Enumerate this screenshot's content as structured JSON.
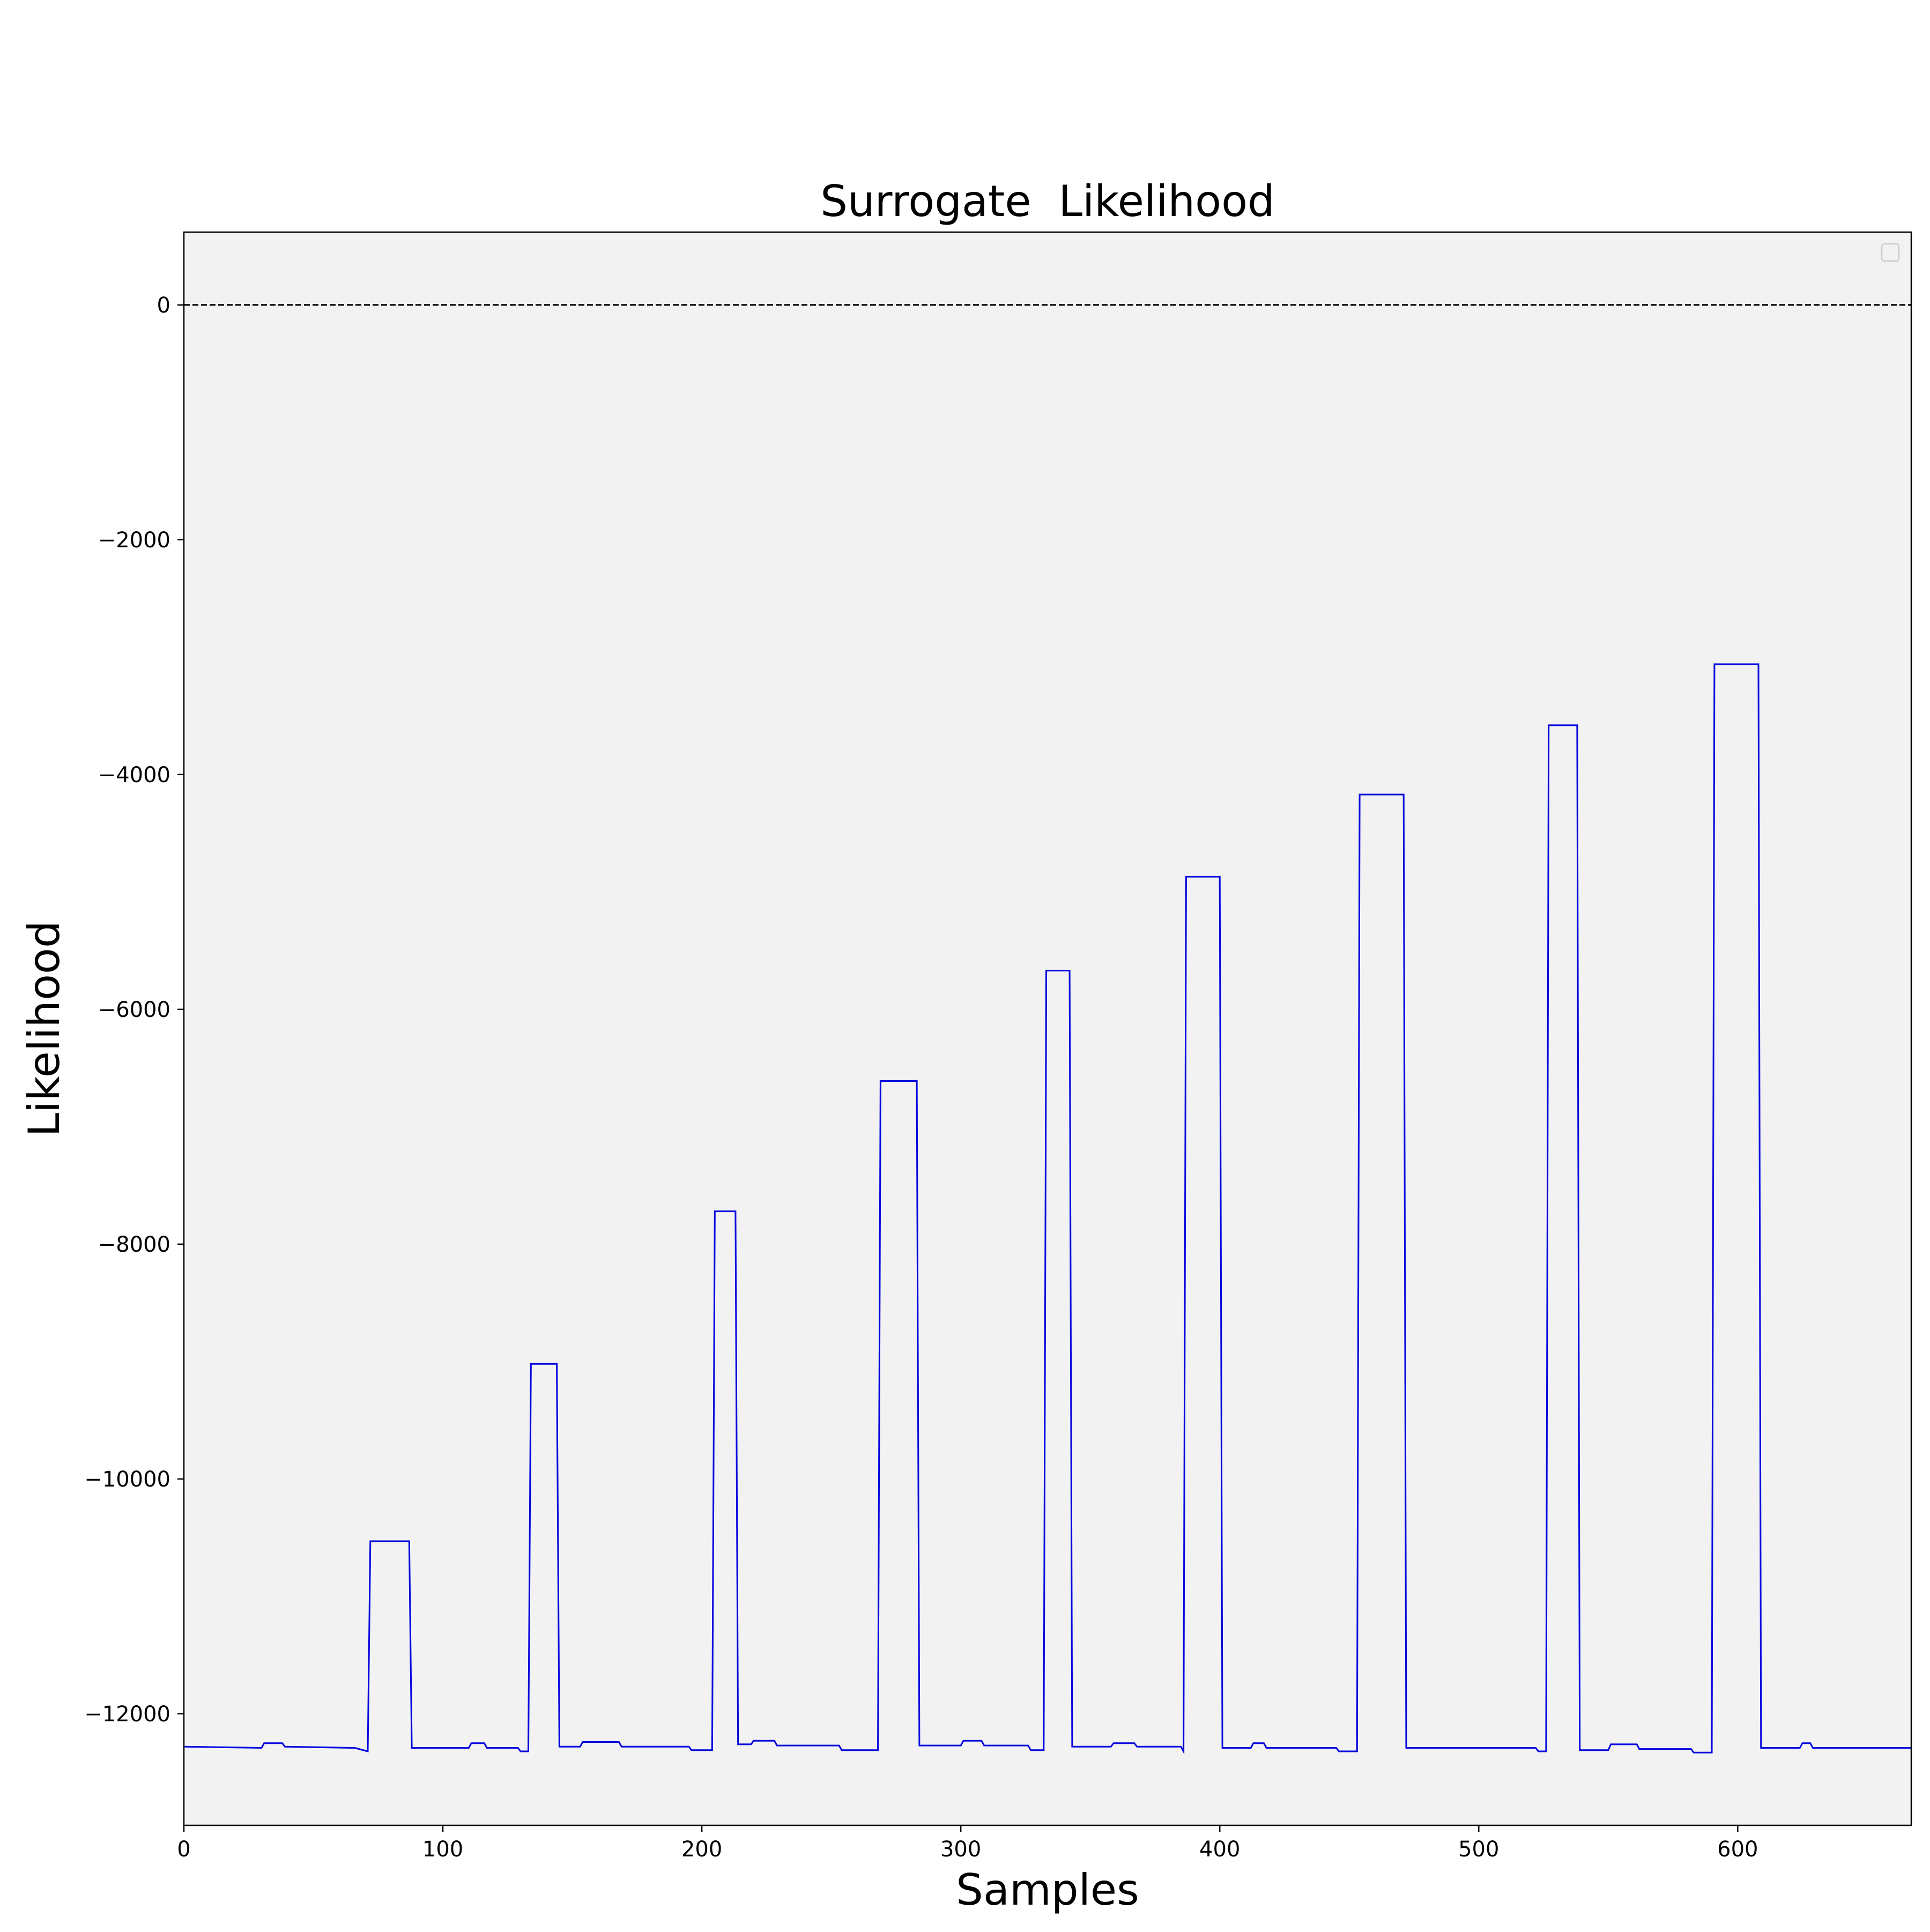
{
  "chart_data": {
    "type": "line",
    "title": "Surrogate  Likelihood",
    "xlabel": "Samples",
    "ylabel": "Likelihood",
    "xlim": [
      0,
      667
    ],
    "ylim": [
      -12950,
      620
    ],
    "xticks": [
      0,
      100,
      200,
      300,
      400,
      500,
      600
    ],
    "xtick_labels": [
      "0",
      "100",
      "200",
      "300",
      "400",
      "500",
      "600"
    ],
    "yticks": [
      0,
      -2000,
      -4000,
      -6000,
      -8000,
      -10000,
      -12000
    ],
    "ytick_labels": [
      "0",
      "−2000",
      "−4000",
      "−6000",
      "−8000",
      "−10000",
      "−12000"
    ],
    "grid": false,
    "legend": {
      "placement": "top-right",
      "entries": []
    },
    "background": "#f2f2f2",
    "line_color": "#0000dd",
    "reference_line": {
      "y": 0,
      "style": "dashed",
      "color": "#000000"
    },
    "series": [
      {
        "x": [
          0,
          30,
          31,
          38,
          39,
          65,
          66,
          71,
          72,
          87,
          88,
          110,
          111,
          116,
          117,
          129,
          130,
          133,
          134,
          144,
          145,
          153,
          154,
          168,
          169,
          195,
          196,
          204,
          205,
          213,
          214,
          219,
          220,
          228,
          229,
          253,
          254,
          268,
          269,
          283,
          284,
          300,
          301,
          308,
          309,
          326,
          327,
          332,
          333,
          342,
          343,
          358,
          359,
          367,
          368,
          385,
          386,
          387,
          400,
          401,
          412,
          413,
          417,
          418,
          445,
          446,
          453,
          454,
          471,
          472,
          522,
          523,
          526,
          527,
          538,
          539,
          550,
          551,
          561,
          562,
          582,
          583,
          590,
          591,
          608,
          609,
          624,
          625,
          628,
          629,
          667
        ],
        "y": [
          -12280,
          -12290,
          -12250,
          -12250,
          -12280,
          -12290,
          -12290,
          -12320,
          -10530,
          -10530,
          -12290,
          -12290,
          -12250,
          -12250,
          -12290,
          -12290,
          -12320,
          -12320,
          -9020,
          -9020,
          -12280,
          -12280,
          -12240,
          -12240,
          -12280,
          -12280,
          -12310,
          -12310,
          -7720,
          -7720,
          -12260,
          -12260,
          -12230,
          -12230,
          -12270,
          -12270,
          -12310,
          -12310,
          -6610,
          -6610,
          -12270,
          -12270,
          -12230,
          -12230,
          -12270,
          -12270,
          -12310,
          -12310,
          -5670,
          -5670,
          -12280,
          -12280,
          -12250,
          -12250,
          -12280,
          -12280,
          -12320,
          -4870,
          -4870,
          -12290,
          -12290,
          -12250,
          -12250,
          -12290,
          -12290,
          -12320,
          -12320,
          -4170,
          -4170,
          -12290,
          -12290,
          -12320,
          -12320,
          -3580,
          -3580,
          -12310,
          -12310,
          -12260,
          -12260,
          -12300,
          -12300,
          -12330,
          -12330,
          -3060,
          -3060,
          -12290,
          -12290,
          -12250,
          -12250,
          -12290,
          -12290
        ]
      }
    ]
  }
}
